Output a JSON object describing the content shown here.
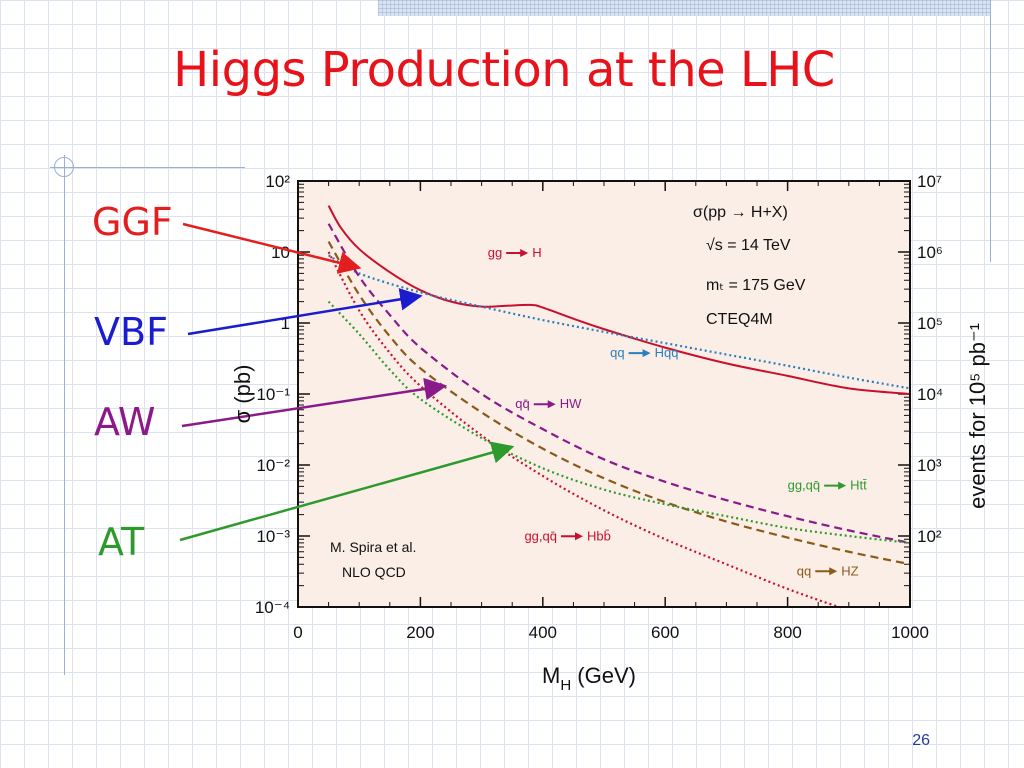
{
  "slide": {
    "title": "Higgs Production at the LHC",
    "page_number": "26"
  },
  "callouts": [
    {
      "label": "GGF",
      "color": "#e31e1e"
    },
    {
      "label": "VBF",
      "color": "#1c1ccf"
    },
    {
      "label": "AW",
      "color": "#8a1a8a"
    },
    {
      "label": "AT",
      "color": "#2e9a2e"
    }
  ],
  "chart_data": {
    "type": "line",
    "xlabel": "M",
    "xlabel_sub": "H",
    "xlabel_unit": " (GeV)",
    "ylabel": "σ (pb)",
    "y2label": "events for 10⁵ pb⁻¹",
    "xlim": [
      0,
      1000
    ],
    "ylim": [
      0.0001,
      100
    ],
    "y_scale": "log",
    "xticks": [
      0,
      200,
      400,
      600,
      800,
      1000
    ],
    "yticks": [
      {
        "value": 100,
        "label": "10²"
      },
      {
        "value": 10,
        "label": "10"
      },
      {
        "value": 1,
        "label": "1"
      },
      {
        "value": 0.1,
        "label": "10⁻¹"
      },
      {
        "value": 0.01,
        "label": "10⁻²"
      },
      {
        "value": 0.001,
        "label": "10⁻³"
      },
      {
        "value": 0.0001,
        "label": "10⁻⁴"
      }
    ],
    "y2ticks": [
      {
        "value": 100,
        "label": "10⁷"
      },
      {
        "value": 10,
        "label": "10⁶"
      },
      {
        "value": 1,
        "label": "10⁵"
      },
      {
        "value": 0.1,
        "label": "10⁴"
      },
      {
        "value": 0.01,
        "label": "10³"
      },
      {
        "value": 0.001,
        "label": "10²"
      }
    ],
    "info": [
      "σ(pp → H+X)",
      "√s = 14 TeV",
      "mₜ = 175 GeV",
      "CTEQ4M"
    ],
    "credit": [
      "M. Spira et al.",
      "NLO  QCD"
    ],
    "series": [
      {
        "name": "gg → H",
        "color": "#c8102e",
        "dash": "solid",
        "x": [
          50,
          70,
          100,
          150,
          200,
          250,
          300,
          340,
          380,
          400,
          450,
          500,
          600,
          700,
          800,
          900,
          1000
        ],
        "y": [
          45,
          22,
          11,
          5.2,
          2.9,
          2.0,
          1.7,
          1.75,
          1.8,
          1.65,
          1.15,
          0.82,
          0.45,
          0.27,
          0.18,
          0.12,
          0.1
        ]
      },
      {
        "name": "qq → Hqq",
        "color": "#2a7fc0",
        "dash": "dotted",
        "x": [
          50,
          100,
          200,
          300,
          400,
          500,
          600,
          700,
          800,
          900,
          1000
        ],
        "y": [
          9,
          5,
          2.7,
          1.7,
          1.1,
          0.75,
          0.52,
          0.36,
          0.25,
          0.17,
          0.12
        ]
      },
      {
        "name": "qq̄ → HW",
        "color": "#8a1a8a",
        "dash": "dashed",
        "x": [
          50,
          100,
          150,
          200,
          300,
          400,
          500,
          600,
          700,
          800,
          900,
          1000
        ],
        "y": [
          25,
          4.5,
          1.3,
          0.45,
          0.1,
          0.032,
          0.012,
          0.0058,
          0.0032,
          0.0019,
          0.0012,
          0.0008
        ]
      },
      {
        "name": "qq → HZ",
        "color": "#8b5a1a",
        "dash": "dashed",
        "x": [
          50,
          100,
          150,
          200,
          300,
          400,
          500,
          600,
          700,
          800,
          900,
          1000
        ],
        "y": [
          14,
          2.5,
          0.65,
          0.23,
          0.055,
          0.017,
          0.0065,
          0.003,
          0.0016,
          0.00095,
          0.0006,
          0.0004
        ]
      },
      {
        "name": "gg,qq̄ → Htt̄",
        "color": "#2e9a2e",
        "dash": "dotted",
        "x": [
          50,
          100,
          150,
          200,
          300,
          400,
          500,
          600,
          700,
          800,
          900,
          1000
        ],
        "y": [
          2.0,
          0.7,
          0.22,
          0.085,
          0.024,
          0.009,
          0.0045,
          0.0028,
          0.0019,
          0.0013,
          0.001,
          0.0008
        ]
      },
      {
        "name": "gg,qq̄ → Hbb̄",
        "color": "#c8102e",
        "dash": "dotted",
        "x": [
          50,
          100,
          150,
          200,
          300,
          400,
          500,
          600,
          700,
          800,
          900,
          1000
        ],
        "y": [
          10,
          1.5,
          0.38,
          0.13,
          0.026,
          0.007,
          0.0023,
          0.0009,
          0.0004,
          0.00018,
          9e-05,
          5e-05
        ]
      }
    ],
    "curve_labels": [
      {
        "lhs": "gg",
        "rhs": "H",
        "color": "#c8102e",
        "x": 310,
        "y": 8.5
      },
      {
        "lhs": "qq",
        "rhs": "Hqq",
        "color": "#2a7fc0",
        "x": 510,
        "y": 0.33
      },
      {
        "lhs": "qq̄",
        "rhs": "HW",
        "color": "#8a1a8a",
        "x": 355,
        "y": 0.063
      },
      {
        "lhs": "gg,qq̄",
        "rhs": "Htt̄",
        "color": "#2e9a2e",
        "x": 800,
        "y": 0.0045
      },
      {
        "lhs": "gg,qq̄",
        "rhs": "Hbb̄",
        "color": "#c8102e",
        "x": 370,
        "y": 0.00087
      },
      {
        "lhs": "qq",
        "rhs": "HZ",
        "color": "#8b5a1a",
        "x": 815,
        "y": 0.00028
      }
    ],
    "callout_targets": [
      {
        "label": "GGF",
        "x": 100,
        "y": 6.0
      },
      {
        "label": "VBF",
        "x": 200,
        "y": 2.4
      },
      {
        "label": "AW",
        "x": 240,
        "y": 0.13
      },
      {
        "label": "AT",
        "x": 350,
        "y": 0.018
      }
    ]
  }
}
